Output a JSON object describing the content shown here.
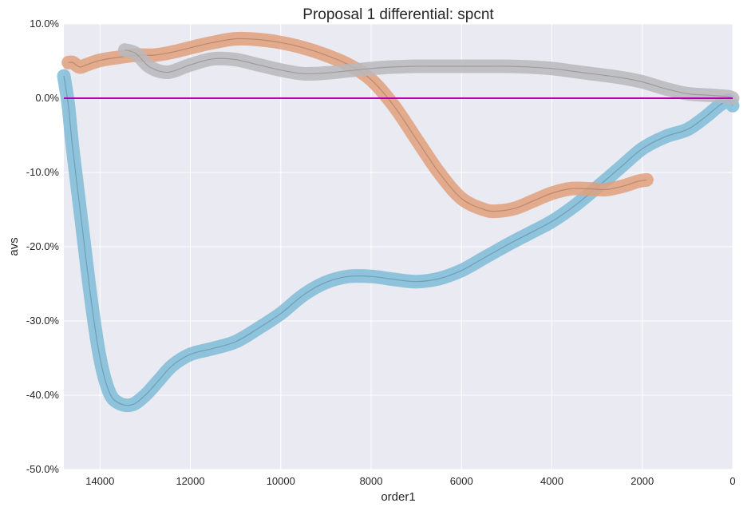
{
  "chart_data": {
    "type": "line",
    "title": "Proposal 1 differential: spcnt",
    "xlabel": "order1",
    "ylabel": "avs",
    "x_reversed": true,
    "xlim": [
      14800,
      0
    ],
    "ylim": [
      -0.5,
      0.1
    ],
    "x_ticks": [
      14000,
      12000,
      10000,
      8000,
      6000,
      4000,
      2000,
      0
    ],
    "x_tick_labels": [
      "14000",
      "12000",
      "10000",
      "8000",
      "6000",
      "4000",
      "2000",
      "0"
    ],
    "y_ticks": [
      0.1,
      0.0,
      -0.1,
      -0.2,
      -0.3,
      -0.4,
      -0.5
    ],
    "y_tick_labels": [
      "10.0%",
      "0.0%",
      "-10.0%",
      "-20.0%",
      "-30.0%",
      "-40.0%",
      "-50.0%"
    ],
    "grid": true,
    "legend": "none",
    "reference_line": {
      "y": 0.0,
      "color": "#b000b0"
    },
    "colors": {
      "background": "#eaeaf2",
      "grid": "#ffffff"
    },
    "series": [
      {
        "color": "#7fbcd8",
        "points": [
          [
            14800,
            0.03
          ],
          [
            14700,
            -0.01
          ],
          [
            14600,
            -0.07
          ],
          [
            14400,
            -0.17
          ],
          [
            14200,
            -0.27
          ],
          [
            14000,
            -0.35
          ],
          [
            13800,
            -0.395
          ],
          [
            13600,
            -0.41
          ],
          [
            13300,
            -0.413
          ],
          [
            13000,
            -0.4
          ],
          [
            12700,
            -0.38
          ],
          [
            12400,
            -0.36
          ],
          [
            12000,
            -0.345
          ],
          [
            11500,
            -0.337
          ],
          [
            11000,
            -0.328
          ],
          [
            10500,
            -0.31
          ],
          [
            10000,
            -0.29
          ],
          [
            9500,
            -0.265
          ],
          [
            9000,
            -0.248
          ],
          [
            8500,
            -0.24
          ],
          [
            8000,
            -0.24
          ],
          [
            7500,
            -0.244
          ],
          [
            7000,
            -0.247
          ],
          [
            6500,
            -0.243
          ],
          [
            6000,
            -0.232
          ],
          [
            5500,
            -0.215
          ],
          [
            5000,
            -0.198
          ],
          [
            4500,
            -0.182
          ],
          [
            4000,
            -0.166
          ],
          [
            3500,
            -0.145
          ],
          [
            3000,
            -0.12
          ],
          [
            2500,
            -0.094
          ],
          [
            2000,
            -0.068
          ],
          [
            1500,
            -0.052
          ],
          [
            1000,
            -0.042
          ],
          [
            600,
            -0.025
          ],
          [
            300,
            -0.01
          ],
          [
            100,
            -0.003
          ],
          [
            0,
            -0.01
          ]
        ]
      },
      {
        "color": "#e0a07c",
        "points": [
          [
            14700,
            0.048
          ],
          [
            14600,
            0.048
          ],
          [
            14450,
            0.042
          ],
          [
            14300,
            0.045
          ],
          [
            14000,
            0.051
          ],
          [
            13600,
            0.055
          ],
          [
            13200,
            0.058
          ],
          [
            12800,
            0.058
          ],
          [
            12400,
            0.062
          ],
          [
            12000,
            0.068
          ],
          [
            11500,
            0.075
          ],
          [
            11000,
            0.08
          ],
          [
            10500,
            0.079
          ],
          [
            10000,
            0.075
          ],
          [
            9500,
            0.068
          ],
          [
            9000,
            0.058
          ],
          [
            8500,
            0.045
          ],
          [
            8000,
            0.025
          ],
          [
            7500,
            -0.01
          ],
          [
            7000,
            -0.055
          ],
          [
            6500,
            -0.1
          ],
          [
            6000,
            -0.135
          ],
          [
            5500,
            -0.15
          ],
          [
            5200,
            -0.152
          ],
          [
            4800,
            -0.148
          ],
          [
            4400,
            -0.138
          ],
          [
            4000,
            -0.128
          ],
          [
            3600,
            -0.122
          ],
          [
            3200,
            -0.122
          ],
          [
            2800,
            -0.123
          ],
          [
            2400,
            -0.118
          ],
          [
            2100,
            -0.112
          ],
          [
            1900,
            -0.11
          ]
        ]
      },
      {
        "color": "#b8b8bc",
        "points": [
          [
            13450,
            0.065
          ],
          [
            13200,
            0.06
          ],
          [
            12900,
            0.042
          ],
          [
            12500,
            0.035
          ],
          [
            12000,
            0.045
          ],
          [
            11500,
            0.053
          ],
          [
            11000,
            0.052
          ],
          [
            10500,
            0.045
          ],
          [
            10000,
            0.038
          ],
          [
            9500,
            0.033
          ],
          [
            9000,
            0.034
          ],
          [
            8500,
            0.037
          ],
          [
            8000,
            0.04
          ],
          [
            7500,
            0.042
          ],
          [
            7000,
            0.043
          ],
          [
            6500,
            0.043
          ],
          [
            6000,
            0.043
          ],
          [
            5500,
            0.043
          ],
          [
            5000,
            0.043
          ],
          [
            4500,
            0.042
          ],
          [
            4000,
            0.04
          ],
          [
            3500,
            0.036
          ],
          [
            3000,
            0.032
          ],
          [
            2500,
            0.028
          ],
          [
            2000,
            0.022
          ],
          [
            1500,
            0.013
          ],
          [
            1000,
            0.006
          ],
          [
            500,
            0.004
          ],
          [
            100,
            0.002
          ],
          [
            0,
            0.0
          ]
        ]
      }
    ]
  }
}
